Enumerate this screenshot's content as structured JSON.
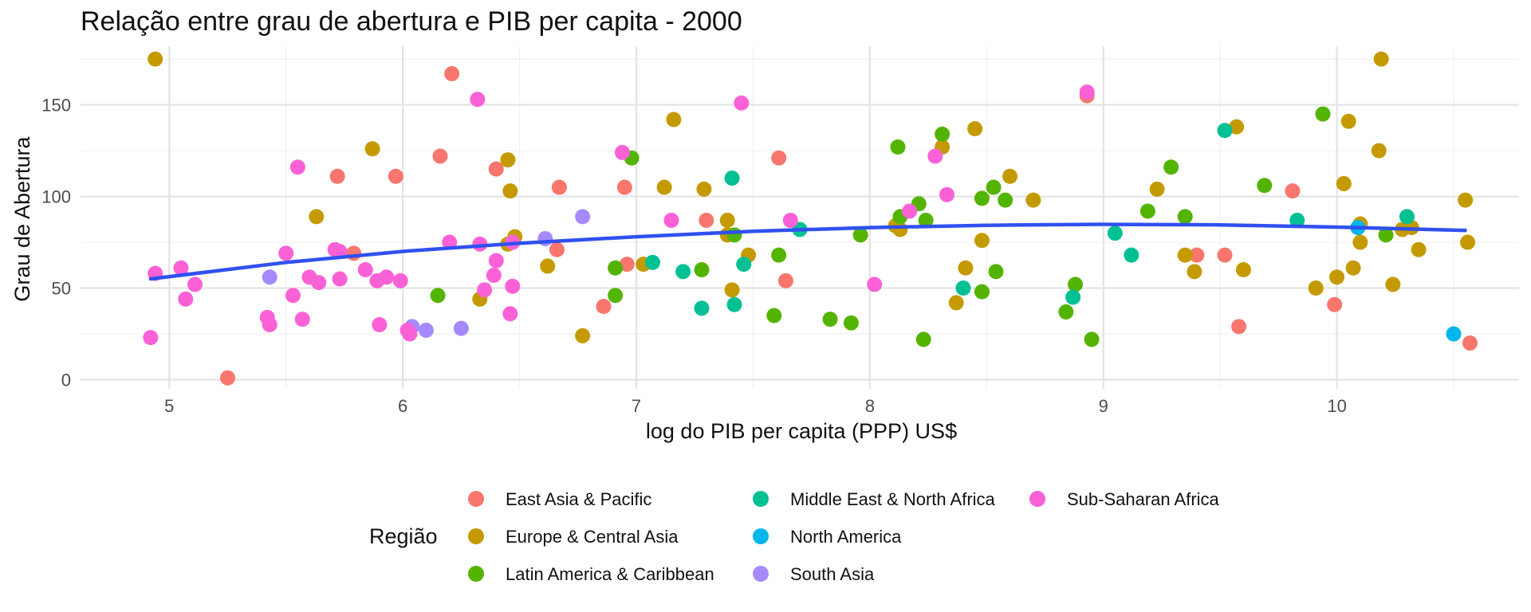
{
  "chart_data": {
    "type": "scatter",
    "title": "Relação entre grau de abertura e PIB per capita - 2000",
    "xlabel": "log do PIB per capita (PPP) US$",
    "ylabel": "Grau de Abertura",
    "xlim": [
      4.62,
      10.78
    ],
    "ylim": [
      -5,
      182
    ],
    "x_ticks": [
      5,
      6,
      7,
      8,
      9,
      10
    ],
    "y_ticks": [
      0,
      50,
      100,
      150
    ],
    "grid": true,
    "legend": {
      "title": "Região",
      "position": "bottom",
      "entries": [
        {
          "name": "East Asia & Pacific",
          "color": "#F8766D"
        },
        {
          "name": "Europe & Central Asia",
          "color": "#C49A00"
        },
        {
          "name": "Latin America & Caribbean",
          "color": "#53B400"
        },
        {
          "name": "Middle East & North Africa",
          "color": "#00C094"
        },
        {
          "name": "North America",
          "color": "#00B6EB"
        },
        {
          "name": "South Asia",
          "color": "#A58AFF"
        },
        {
          "name": "Sub-Saharan Africa",
          "color": "#FB61D7"
        }
      ]
    },
    "trend_line": {
      "color": "#3050F0",
      "x": [
        4.92,
        5.5,
        6.0,
        6.5,
        7.0,
        7.5,
        8.0,
        8.5,
        9.0,
        9.5,
        10.0,
        10.55
      ],
      "y": [
        55,
        64,
        70,
        74.5,
        78,
        81,
        83,
        84.3,
        84.8,
        84.5,
        83.3,
        81.5
      ]
    },
    "series": [
      {
        "name": "East Asia & Pacific",
        "points": [
          [
            5.25,
            1
          ],
          [
            5.72,
            111
          ],
          [
            5.97,
            111
          ],
          [
            5.79,
            69
          ],
          [
            6.16,
            122
          ],
          [
            6.21,
            167
          ],
          [
            6.4,
            115
          ],
          [
            6.67,
            105
          ],
          [
            6.66,
            71
          ],
          [
            6.86,
            40
          ],
          [
            6.95,
            105
          ],
          [
            6.96,
            63
          ],
          [
            7.3,
            87
          ],
          [
            7.61,
            121
          ],
          [
            7.64,
            54
          ],
          [
            8.93,
            155
          ],
          [
            9.4,
            68
          ],
          [
            9.52,
            68
          ],
          [
            9.58,
            29
          ],
          [
            9.81,
            103
          ],
          [
            9.99,
            41
          ],
          [
            10.57,
            20
          ]
        ]
      },
      {
        "name": "Europe & Central Asia",
        "points": [
          [
            4.94,
            175
          ],
          [
            5.63,
            89
          ],
          [
            5.87,
            126
          ],
          [
            6.33,
            44
          ],
          [
            6.45,
            120
          ],
          [
            6.45,
            74
          ],
          [
            6.46,
            103
          ],
          [
            6.48,
            78
          ],
          [
            6.62,
            62
          ],
          [
            6.77,
            24
          ],
          [
            7.03,
            63
          ],
          [
            7.12,
            105
          ],
          [
            7.16,
            142
          ],
          [
            7.29,
            104
          ],
          [
            7.39,
            87
          ],
          [
            7.39,
            79
          ],
          [
            7.41,
            49
          ],
          [
            7.48,
            68
          ],
          [
            8.11,
            84
          ],
          [
            8.13,
            82
          ],
          [
            8.31,
            127
          ],
          [
            8.37,
            42
          ],
          [
            8.41,
            61
          ],
          [
            8.45,
            137
          ],
          [
            8.48,
            76
          ],
          [
            8.6,
            111
          ],
          [
            8.7,
            98
          ],
          [
            9.23,
            104
          ],
          [
            9.35,
            68
          ],
          [
            9.39,
            59
          ],
          [
            9.57,
            138
          ],
          [
            9.6,
            60
          ],
          [
            9.91,
            50
          ],
          [
            10.0,
            56
          ],
          [
            10.03,
            107
          ],
          [
            10.05,
            141
          ],
          [
            10.07,
            61
          ],
          [
            10.1,
            75
          ],
          [
            10.1,
            85
          ],
          [
            10.18,
            125
          ],
          [
            10.19,
            175
          ],
          [
            10.24,
            52
          ],
          [
            10.28,
            82
          ],
          [
            10.32,
            83
          ],
          [
            10.35,
            71
          ],
          [
            10.55,
            98
          ],
          [
            10.56,
            75
          ]
        ]
      },
      {
        "name": "Latin America & Caribbean",
        "points": [
          [
            6.15,
            46
          ],
          [
            6.91,
            61
          ],
          [
            6.91,
            46
          ],
          [
            6.98,
            121
          ],
          [
            7.28,
            60
          ],
          [
            7.42,
            79
          ],
          [
            7.59,
            35
          ],
          [
            7.61,
            68
          ],
          [
            7.83,
            33
          ],
          [
            7.92,
            31
          ],
          [
            7.96,
            79
          ],
          [
            8.12,
            127
          ],
          [
            8.13,
            89
          ],
          [
            8.21,
            96
          ],
          [
            8.23,
            22
          ],
          [
            8.24,
            87
          ],
          [
            8.31,
            134
          ],
          [
            8.48,
            99
          ],
          [
            8.48,
            48
          ],
          [
            8.53,
            105
          ],
          [
            8.54,
            59
          ],
          [
            8.58,
            98
          ],
          [
            8.84,
            37
          ],
          [
            8.88,
            52
          ],
          [
            8.95,
            22
          ],
          [
            9.19,
            92
          ],
          [
            9.29,
            116
          ],
          [
            9.35,
            89
          ],
          [
            9.69,
            106
          ],
          [
            9.94,
            145
          ],
          [
            10.21,
            79
          ]
        ]
      },
      {
        "name": "Middle East & North Africa",
        "points": [
          [
            7.07,
            64
          ],
          [
            7.2,
            59
          ],
          [
            7.28,
            39
          ],
          [
            7.41,
            110
          ],
          [
            7.42,
            41
          ],
          [
            7.46,
            63
          ],
          [
            7.7,
            82
          ],
          [
            8.4,
            50
          ],
          [
            8.87,
            45
          ],
          [
            9.05,
            80
          ],
          [
            9.12,
            68
          ],
          [
            9.52,
            136
          ],
          [
            9.83,
            87
          ],
          [
            10.3,
            89
          ]
        ]
      },
      {
        "name": "North America",
        "points": [
          [
            10.09,
            83
          ],
          [
            10.5,
            25
          ]
        ]
      },
      {
        "name": "South Asia",
        "points": [
          [
            5.43,
            56
          ],
          [
            6.04,
            29
          ],
          [
            6.1,
            27
          ],
          [
            6.25,
            28
          ],
          [
            6.61,
            77
          ],
          [
            6.77,
            89
          ]
        ]
      },
      {
        "name": "Sub-Saharan Africa",
        "points": [
          [
            4.92,
            23
          ],
          [
            4.94,
            58
          ],
          [
            5.05,
            61
          ],
          [
            5.07,
            44
          ],
          [
            5.11,
            52
          ],
          [
            5.42,
            34
          ],
          [
            5.43,
            30
          ],
          [
            5.5,
            69
          ],
          [
            5.53,
            46
          ],
          [
            5.55,
            116
          ],
          [
            5.57,
            33
          ],
          [
            5.6,
            56
          ],
          [
            5.64,
            53
          ],
          [
            5.71,
            71
          ],
          [
            5.73,
            55
          ],
          [
            5.73,
            70
          ],
          [
            5.84,
            60
          ],
          [
            5.89,
            54
          ],
          [
            5.9,
            30
          ],
          [
            5.93,
            56
          ],
          [
            5.99,
            54
          ],
          [
            6.02,
            27
          ],
          [
            6.03,
            25
          ],
          [
            6.2,
            75
          ],
          [
            6.32,
            153
          ],
          [
            6.33,
            74
          ],
          [
            6.35,
            49
          ],
          [
            6.39,
            57
          ],
          [
            6.4,
            65
          ],
          [
            6.46,
            36
          ],
          [
            6.47,
            51
          ],
          [
            6.47,
            75
          ],
          [
            6.94,
            124
          ],
          [
            7.15,
            87
          ],
          [
            7.45,
            151
          ],
          [
            7.66,
            87
          ],
          [
            8.02,
            52
          ],
          [
            8.17,
            92
          ],
          [
            8.28,
            122
          ],
          [
            8.33,
            101
          ],
          [
            8.93,
            157
          ]
        ]
      }
    ]
  }
}
